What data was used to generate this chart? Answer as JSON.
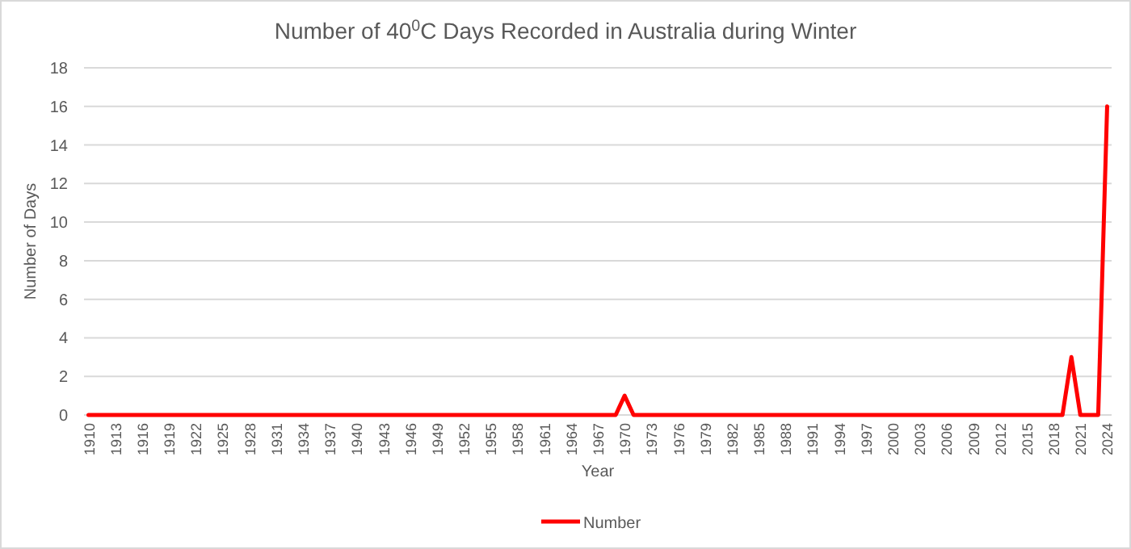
{
  "chart_data": {
    "type": "line",
    "title": "Number of 40$^{0}$C Days Recorded in Australia during Winter",
    "xlabel": "Year",
    "ylabel": "Number of Days",
    "x": [
      1910,
      1969,
      1970,
      1971,
      2019,
      2020,
      2021,
      2023,
      2024
    ],
    "series": [
      {
        "name": "Number",
        "color": "#ff0000",
        "values": [
          0,
          0,
          1,
          0,
          0,
          3,
          0,
          0,
          16
        ]
      }
    ],
    "xlim": [
      1909.5,
      2024.5
    ],
    "xticks": [
      1910,
      1913,
      1916,
      1919,
      1922,
      1925,
      1928,
      1931,
      1934,
      1937,
      1940,
      1943,
      1946,
      1949,
      1952,
      1955,
      1958,
      1961,
      1964,
      1967,
      1970,
      1973,
      1976,
      1979,
      1982,
      1985,
      1988,
      1991,
      1994,
      1997,
      2000,
      2003,
      2006,
      2009,
      2012,
      2015,
      2018,
      2021,
      2024
    ],
    "ylim": [
      0,
      18
    ],
    "yticks": [
      0,
      2,
      4,
      6,
      8,
      10,
      12,
      14,
      16,
      18
    ],
    "grid": "y",
    "legend": "bottom",
    "marker": "none",
    "line_style": "solid"
  }
}
